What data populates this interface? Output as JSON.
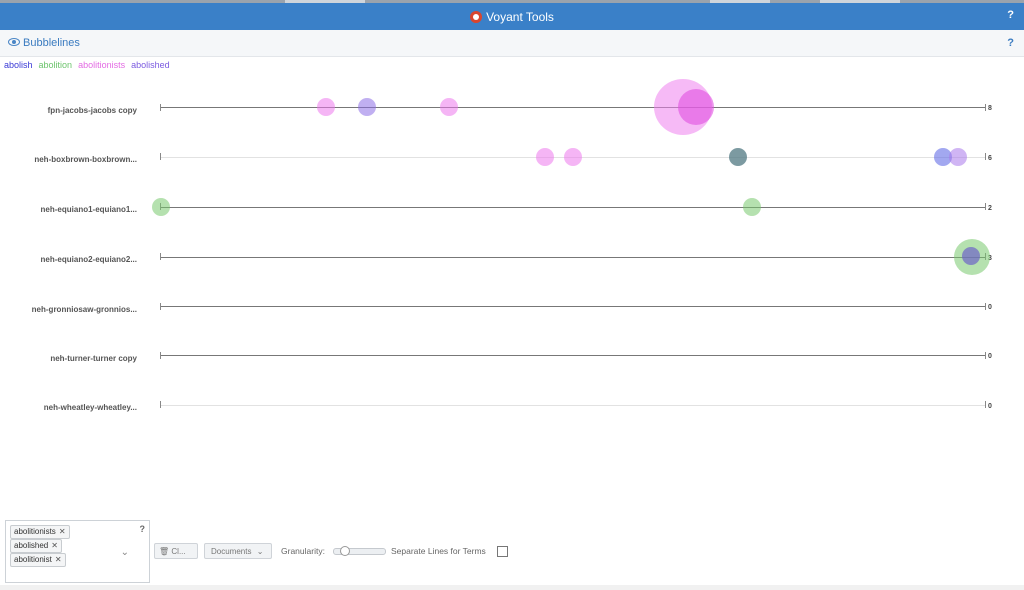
{
  "header": {
    "title": "Voyant Tools",
    "help": "?"
  },
  "toolbar": {
    "title": "Bubblelines",
    "help": "?"
  },
  "legend": [
    {
      "label": "abolish",
      "color": "#3a3ad6"
    },
    {
      "label": "abolition",
      "color": "#6cc46c"
    },
    {
      "label": "abolitionists",
      "color": "#e36ae3"
    },
    {
      "label": "abolished",
      "color": "#7b5be0"
    }
  ],
  "documents": [
    {
      "label": "fpn-jacobs-jacobs copy",
      "count": "8"
    },
    {
      "label": "neh-boxbrown-boxbrown...",
      "count": "6"
    },
    {
      "label": "neh-equiano1-equiano1...",
      "count": "2"
    },
    {
      "label": "neh-equiano2-equiano2...",
      "count": "3"
    },
    {
      "label": "neh-gronniosaw-gronnios...",
      "count": "0"
    },
    {
      "label": "neh-turner-turner copy",
      "count": "0"
    },
    {
      "label": "neh-wheatley-wheatley...",
      "count": "0"
    }
  ],
  "panel": {
    "terms": [
      "abolitionists",
      "abolished",
      "abolitionist"
    ],
    "help": "?",
    "chevron": "chevron-down-icon"
  },
  "controls": {
    "clear_label": "Cl...",
    "documents_label": "Documents",
    "granularity_label": "Granularity:",
    "separate_lines_label": "Separate Lines for Terms"
  }
}
